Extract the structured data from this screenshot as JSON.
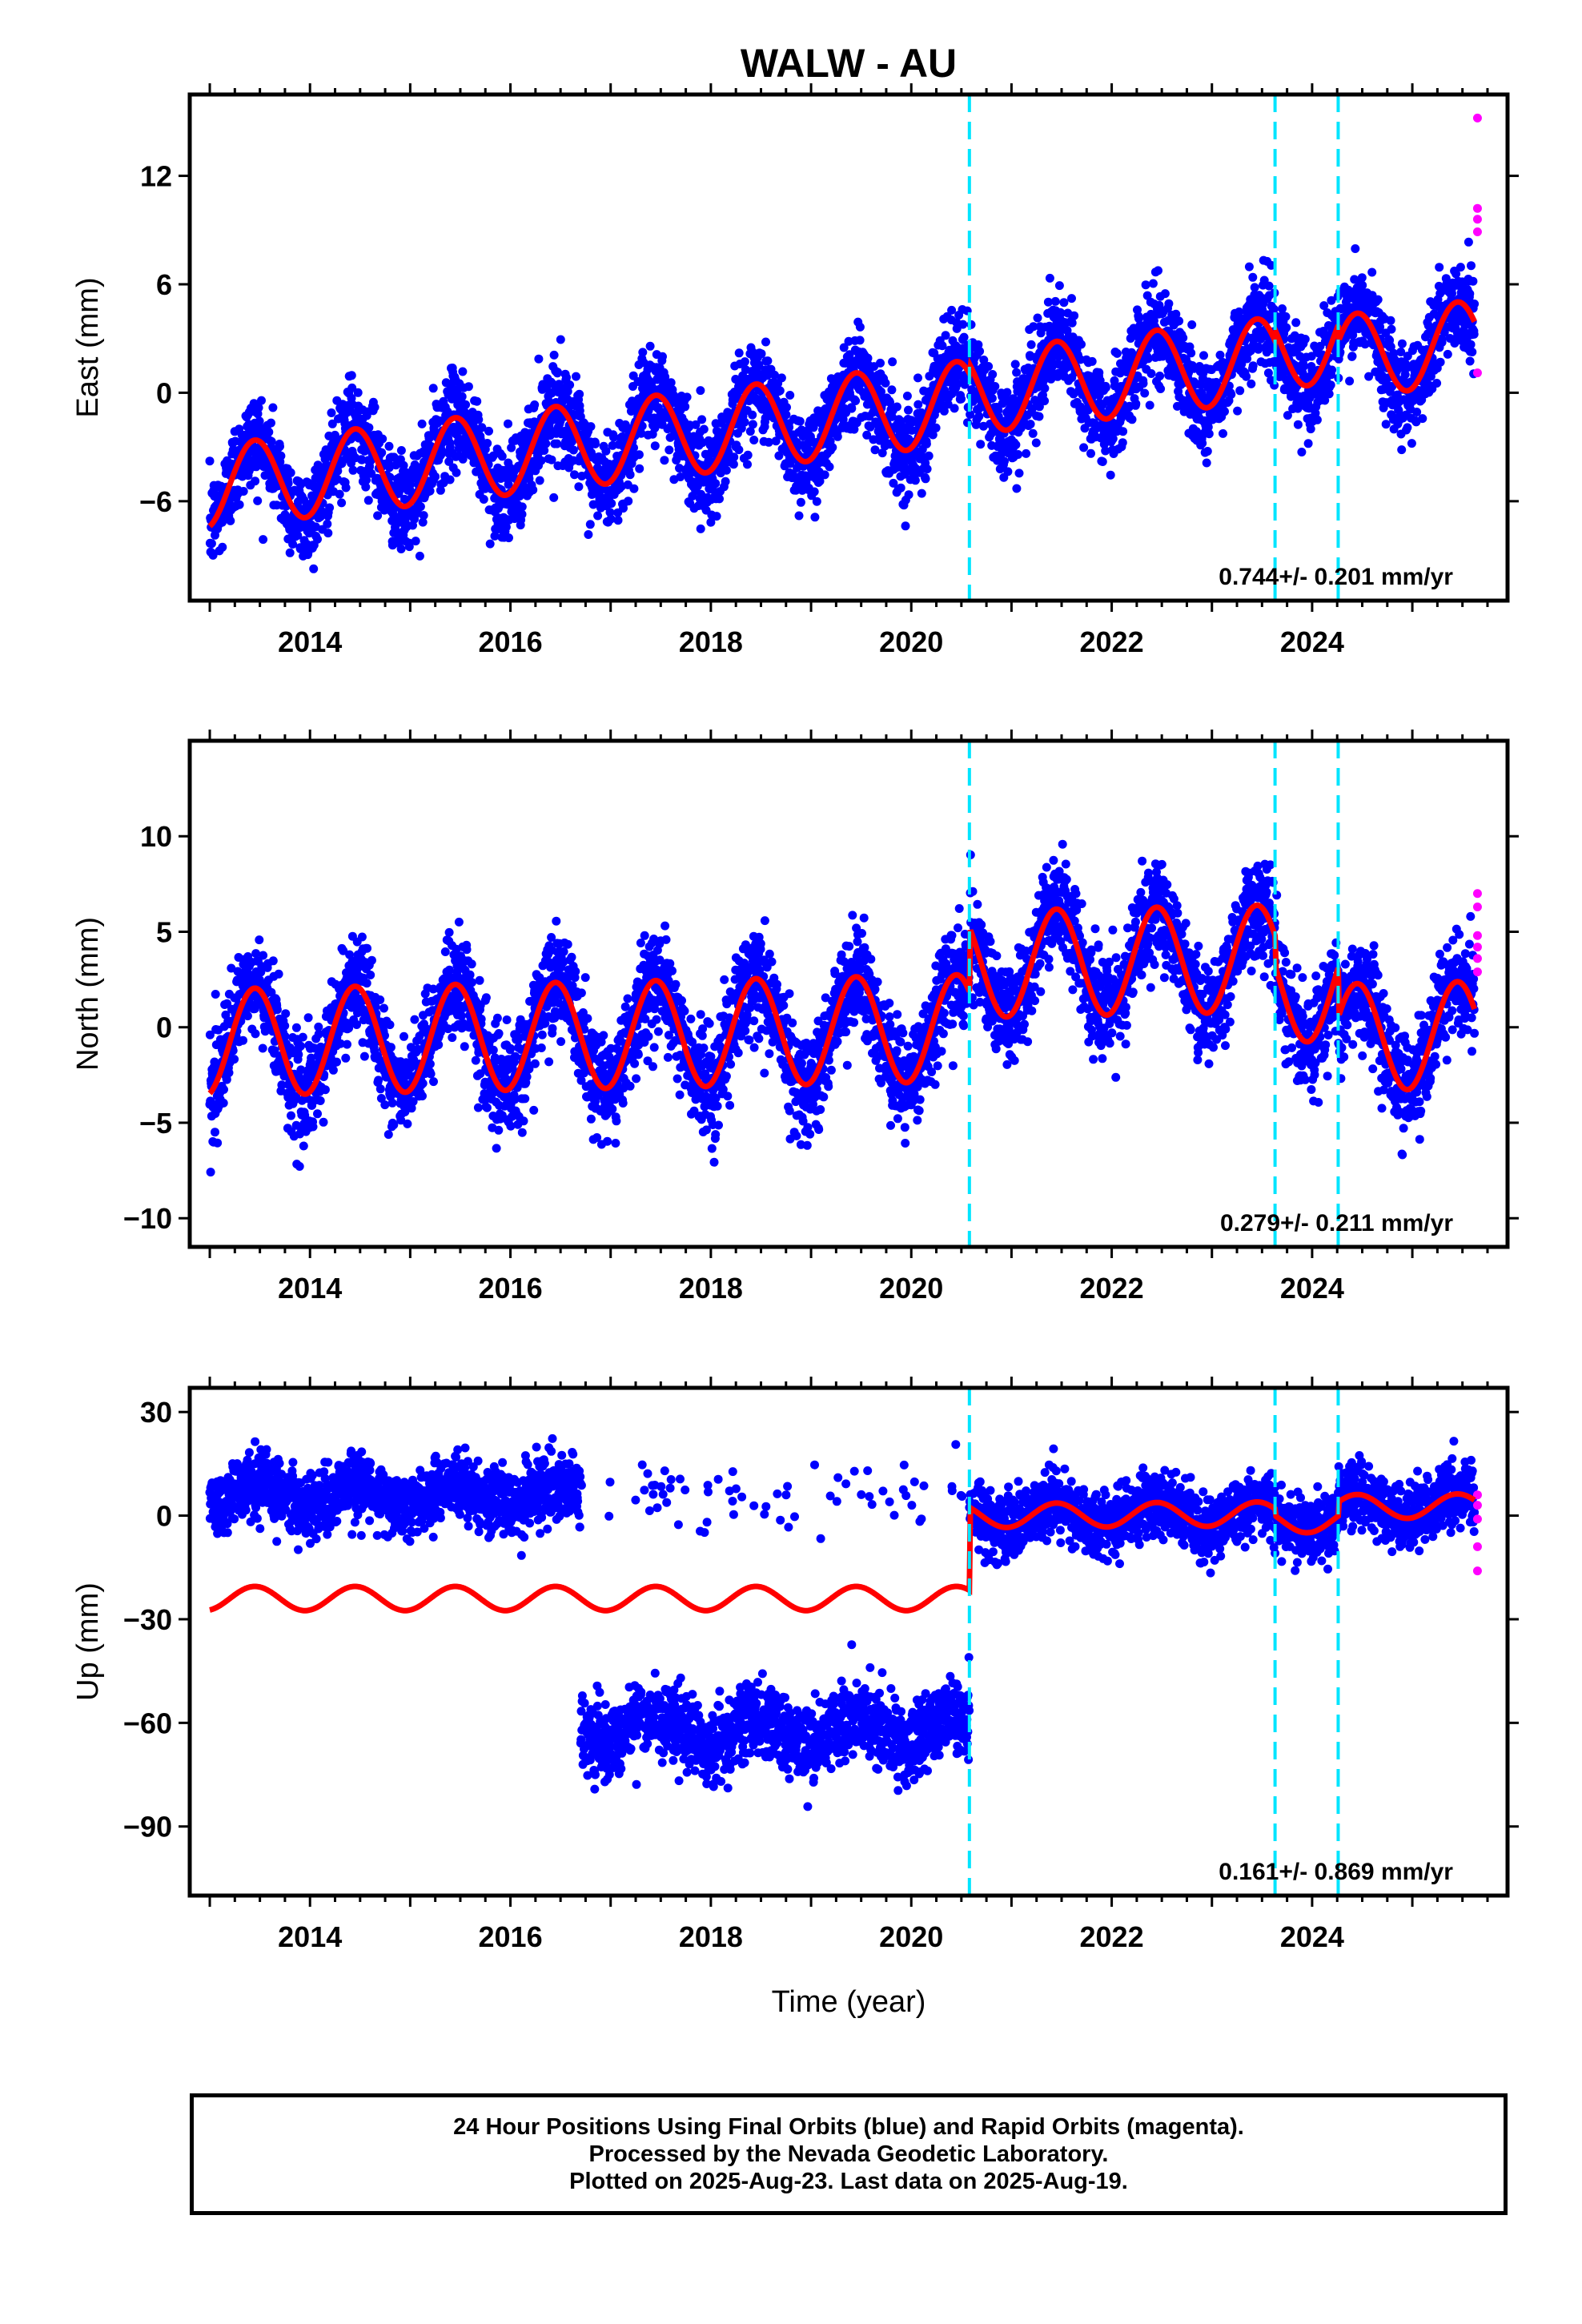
{
  "title": "WALW - AU",
  "xlabel": "Time (year)",
  "footer": {
    "line1": "24 Hour Positions Using Final Orbits (blue) and Rapid Orbits (magenta).",
    "line2": "Processed by the Nevada Geodetic Laboratory.",
    "line3": "Plotted on 2025-Aug-23. Last data on 2025-Aug-19."
  },
  "colors": {
    "final": "#0000ff",
    "rapid": "#ff00ff",
    "model": "#ff0000",
    "steps": "#00e5ff"
  },
  "chart_data": [
    {
      "type": "scatter",
      "ylabel": "East (mm)",
      "xlim": [
        2012.8,
        2025.95
      ],
      "ylim": [
        -11.5,
        16.5
      ],
      "xticks": [
        2014,
        2016,
        2018,
        2020,
        2022,
        2024
      ],
      "yticks": [
        -6,
        0,
        6,
        12
      ],
      "rate": "0.744+/- 0.201 mm/yr",
      "steps": [
        2020.58,
        2023.63,
        2024.26
      ],
      "model": {
        "amp": 2.3,
        "pre": [
          -5.2,
          0.62
        ],
        "post": [
          0.0,
          0.62
        ],
        "offsets": [
          [
            2020.58,
            1.6
          ],
          [
            2023.63,
            0.6
          ],
          [
            2024.26,
            -0.9
          ]
        ],
        "noise": 1.3
      },
      "rapid": [
        [
          2025.65,
          15.2
        ],
        [
          2025.65,
          10.2
        ],
        [
          2025.65,
          9.6
        ],
        [
          2025.65,
          8.9
        ],
        [
          2025.65,
          1.1
        ]
      ]
    },
    {
      "type": "scatter",
      "ylabel": "North (mm)",
      "xlim": [
        2012.8,
        2025.95
      ],
      "ylim": [
        -11.5,
        15
      ],
      "xticks": [
        2014,
        2016,
        2018,
        2020,
        2022,
        2024
      ],
      "yticks": [
        -10,
        -5,
        0,
        5,
        10
      ],
      "rate": "0.279+/- 0.211 mm/yr",
      "steps": [
        2020.58,
        2023.63,
        2024.26
      ],
      "model": {
        "amp": 2.8,
        "pre": [
          -0.8,
          0.1
        ],
        "post": [
          3.3,
          0.1
        ],
        "offsets": [
          [
            2020.58,
            1.5
          ],
          [
            2023.63,
            -1.6
          ],
          [
            2024.26,
            -2.6
          ]
        ],
        "noise": 1.3
      },
      "rapid": [
        [
          2025.65,
          7.0
        ],
        [
          2025.65,
          6.3
        ],
        [
          2025.65,
          4.8
        ],
        [
          2025.65,
          4.2
        ],
        [
          2025.65,
          3.6
        ],
        [
          2025.65,
          2.9
        ]
      ]
    },
    {
      "type": "scatter",
      "ylabel": "Up (mm)",
      "xlim": [
        2012.8,
        2025.95
      ],
      "ylim": [
        -110,
        37
      ],
      "xticks": [
        2014,
        2016,
        2018,
        2020,
        2022,
        2024
      ],
      "yticks": [
        -90,
        -60,
        -30,
        0,
        30
      ],
      "rate": "0.161+/- 0.869 mm/yr",
      "steps": [
        2020.58,
        2023.63,
        2024.26
      ],
      "model": {
        "amp": 3.5,
        "pre": [
          -24,
          0
        ],
        "post": [
          0.0,
          0.16
        ],
        "offsets": [
          [
            2020.58,
            22
          ],
          [
            2023.63,
            -2
          ],
          [
            2024.26,
            4
          ]
        ],
        "noise": 4.5
      },
      "rapid": [
        [
          2025.65,
          6
        ],
        [
          2025.65,
          3
        ],
        [
          2025.65,
          -1
        ],
        [
          2025.65,
          -9
        ],
        [
          2025.65,
          -16
        ]
      ]
    }
  ]
}
